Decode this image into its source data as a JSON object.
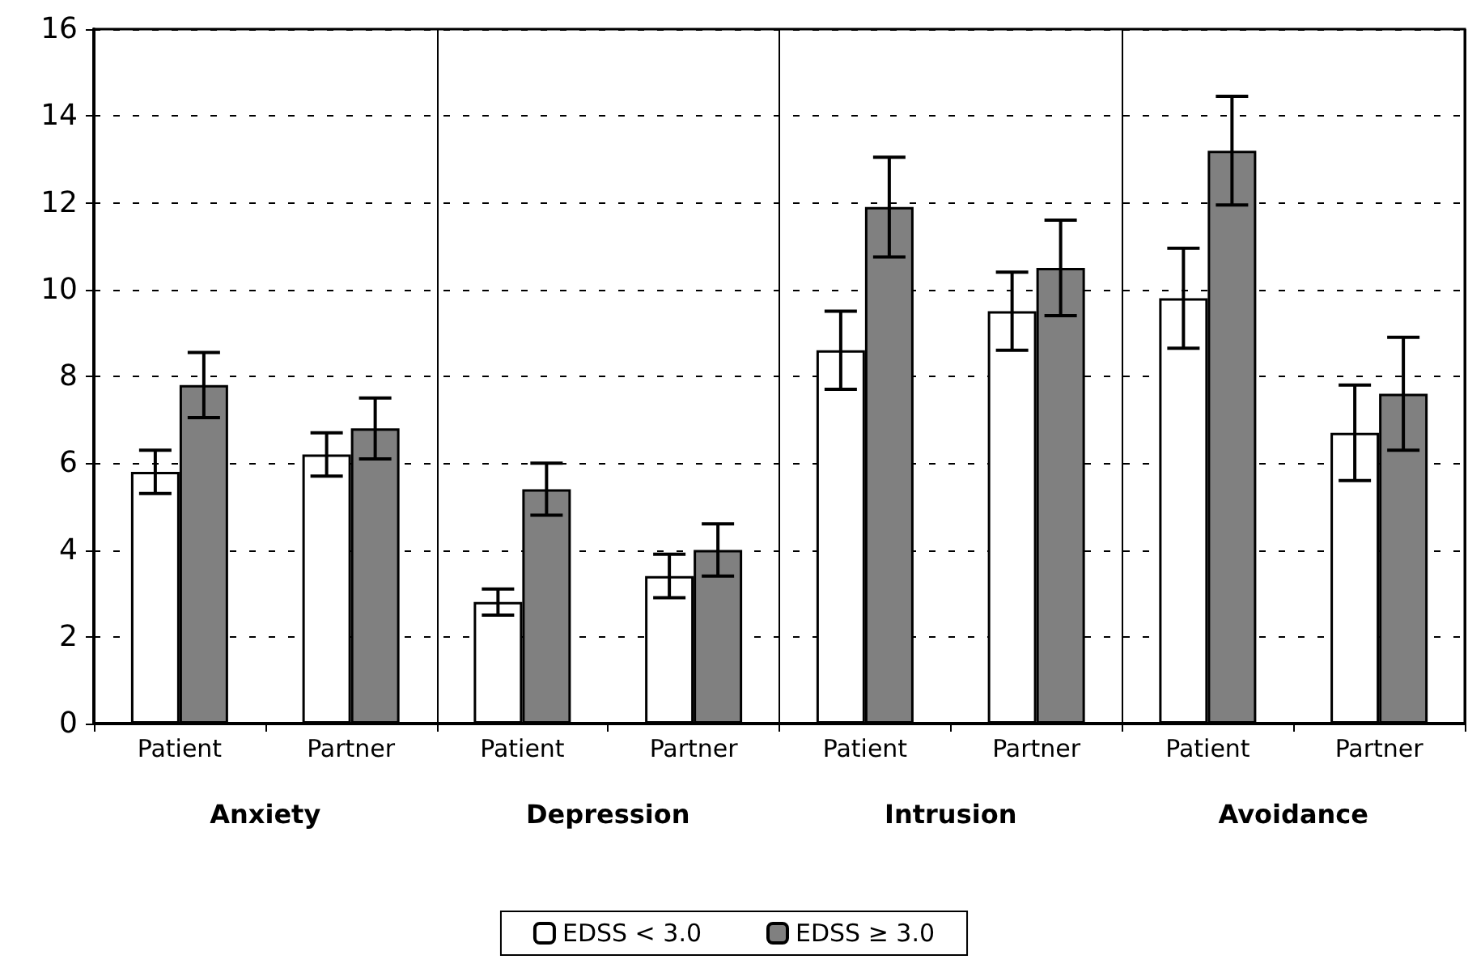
{
  "chart_data": {
    "type": "bar",
    "categories": [
      "Patient",
      "Partner",
      "Patient",
      "Partner",
      "Patient",
      "Partner",
      "Patient",
      "Partner"
    ],
    "series": [
      {
        "name": "EDSS < 3.0",
        "color": "#ffffff",
        "values": [
          5.8,
          6.2,
          2.8,
          3.4,
          8.6,
          9.5,
          9.8,
          6.7
        ],
        "errors": [
          0.5,
          0.5,
          0.3,
          0.5,
          0.9,
          0.9,
          1.15,
          1.1
        ]
      },
      {
        "name": "EDSS ≥ 3.0",
        "color": "#808080",
        "values": [
          7.8,
          6.8,
          5.4,
          4.0,
          11.9,
          10.5,
          13.2,
          7.6
        ],
        "errors": [
          0.75,
          0.7,
          0.6,
          0.6,
          1.15,
          1.1,
          1.25,
          1.3
        ]
      }
    ],
    "annotations": [
      "Anxiety",
      "Depression",
      "Intrusion",
      "Avoidance"
    ],
    "ylim": [
      0,
      16
    ],
    "yticks": [
      0,
      2,
      4,
      6,
      8,
      10,
      12,
      14,
      16
    ],
    "grid": "y",
    "legend": "bottom"
  }
}
